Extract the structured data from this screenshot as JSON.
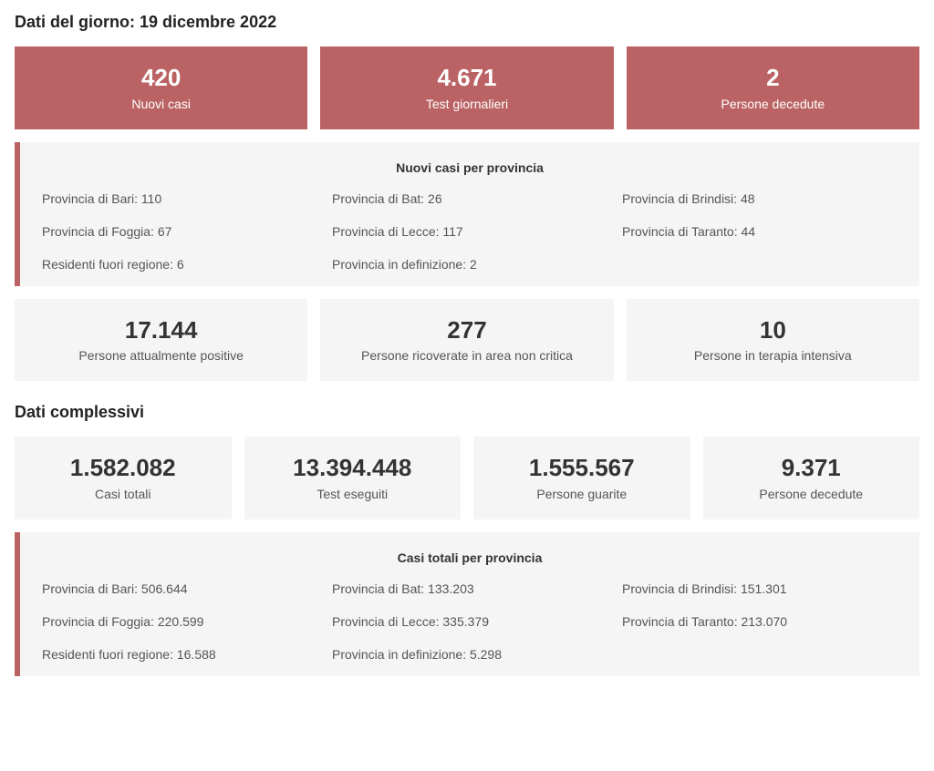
{
  "colors": {
    "accent": "#bb6364",
    "grey_bg": "#f5f5f5",
    "text_dark": "#333333",
    "text_medium": "#555555"
  },
  "daily": {
    "title": "Dati del giorno: 19 dicembre 2022",
    "top_cards": [
      {
        "value": "420",
        "label": "Nuovi casi"
      },
      {
        "value": "4.671",
        "label": "Test giornalieri"
      },
      {
        "value": "2",
        "label": "Persone decedute"
      }
    ],
    "province_panel": {
      "title": "Nuovi casi per provincia",
      "items": [
        "Provincia di Bari: 110",
        "Provincia di Bat: 26",
        "Provincia di Brindisi: 48",
        "Provincia di Foggia: 67",
        "Provincia di Lecce: 117",
        "Provincia di Taranto: 44",
        "Residenti fuori regione: 6",
        "Provincia in definizione: 2"
      ]
    },
    "status_cards": [
      {
        "value": "17.144",
        "label": "Persone attualmente positive"
      },
      {
        "value": "277",
        "label": "Persone ricoverate in area non critica"
      },
      {
        "value": "10",
        "label": "Persone in terapia intensiva"
      }
    ]
  },
  "overall": {
    "title": "Dati complessivi",
    "cards": [
      {
        "value": "1.582.082",
        "label": "Casi totali"
      },
      {
        "value": "13.394.448",
        "label": "Test eseguiti"
      },
      {
        "value": "1.555.567",
        "label": "Persone guarite"
      },
      {
        "value": "9.371",
        "label": "Persone decedute"
      }
    ],
    "province_panel": {
      "title": "Casi totali per provincia",
      "items": [
        "Provincia di Bari: 506.644",
        "Provincia di Bat: 133.203",
        "Provincia di Brindisi: 151.301",
        "Provincia di Foggia: 220.599",
        "Provincia di Lecce: 335.379",
        "Provincia di Taranto: 213.070",
        "Residenti fuori regione: 16.588",
        "Provincia in definizione: 5.298"
      ]
    }
  }
}
